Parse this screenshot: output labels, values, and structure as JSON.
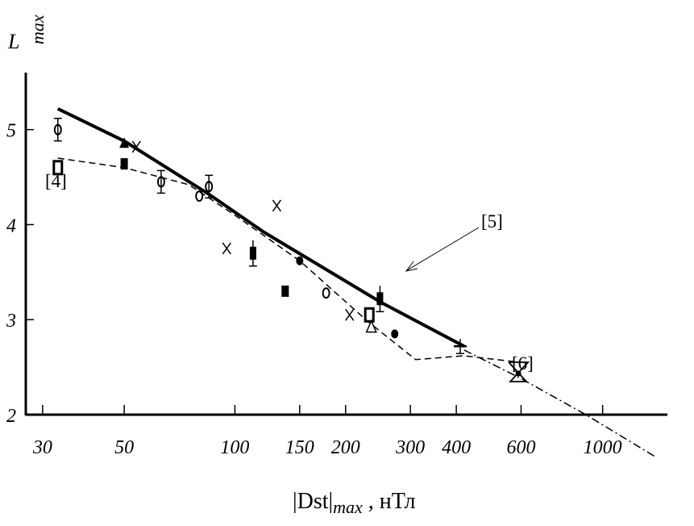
{
  "chart_data": {
    "type": "scatter",
    "xscale": "log",
    "xlim": [
      27,
      1500
    ],
    "ylim": [
      2,
      5.6
    ],
    "x_ticks": [
      30,
      50,
      100,
      150,
      200,
      300,
      400,
      600,
      1000
    ],
    "x_tick_labels": [
      "30",
      "50",
      "100",
      "150",
      "200",
      "300",
      "400",
      "600",
      "1000"
    ],
    "y_ticks": [
      2,
      3,
      4,
      5
    ],
    "y_tick_labels": [
      "2",
      "3",
      "4",
      "5"
    ],
    "ylabel_main": "L",
    "ylabel_sub": "max",
    "xlabel_pre": "|Dst|",
    "xlabel_sub": "max",
    "xlabel_post": " , нТл",
    "series": [
      {
        "name": "[5]",
        "style": "solid-thick",
        "x": [
          33,
          50,
          85,
          120,
          250,
          420
        ],
        "y": [
          5.22,
          4.88,
          4.32,
          3.92,
          3.18,
          2.72
        ]
      },
      {
        "name": "dashed",
        "style": "dashed",
        "x": [
          33,
          50,
          75,
          100,
          150,
          230,
          310,
          420,
          600
        ],
        "y": [
          4.7,
          4.6,
          4.42,
          4.1,
          3.62,
          2.98,
          2.58,
          2.62,
          2.55
        ]
      },
      {
        "name": "[6]",
        "style": "dash-dot",
        "x": [
          420,
          600,
          900,
          1400
        ],
        "y": [
          2.68,
          2.38,
          2.0,
          1.55
        ]
      }
    ],
    "points": [
      {
        "x": 33,
        "y": 5.0,
        "marker": "circle-bar"
      },
      {
        "x": 33,
        "y": 4.6,
        "marker": "open-square"
      },
      {
        "x": 50,
        "y": 4.85,
        "marker": "triangle"
      },
      {
        "x": 50,
        "y": 4.64,
        "marker": "filled-square"
      },
      {
        "x": 54,
        "y": 4.82,
        "marker": "x"
      },
      {
        "x": 63,
        "y": 4.45,
        "marker": "circle-bar"
      },
      {
        "x": 80,
        "y": 4.3,
        "marker": "circle"
      },
      {
        "x": 85,
        "y": 4.4,
        "marker": "circle-bar"
      },
      {
        "x": 95,
        "y": 3.75,
        "marker": "x"
      },
      {
        "x": 112,
        "y": 3.7,
        "marker": "filled-square-bar"
      },
      {
        "x": 130,
        "y": 4.2,
        "marker": "x"
      },
      {
        "x": 137,
        "y": 3.3,
        "marker": "filled-square"
      },
      {
        "x": 150,
        "y": 3.62,
        "marker": "circle-filled"
      },
      {
        "x": 177,
        "y": 3.28,
        "marker": "circle"
      },
      {
        "x": 205,
        "y": 3.05,
        "marker": "x"
      },
      {
        "x": 232,
        "y": 3.05,
        "marker": "open-square"
      },
      {
        "x": 235,
        "y": 2.92,
        "marker": "triangle-open"
      },
      {
        "x": 248,
        "y": 3.22,
        "marker": "filled-square-bar"
      },
      {
        "x": 272,
        "y": 2.85,
        "marker": "circle-filled"
      },
      {
        "x": 410,
        "y": 2.72,
        "marker": "bar"
      },
      {
        "x": 590,
        "y": 2.45,
        "marker": "hourglass"
      }
    ],
    "annotations": [
      {
        "text": "[4]",
        "target": "open-square at 33"
      },
      {
        "text": "[5]",
        "target": "solid line"
      },
      {
        "text": "[6]",
        "target": "hourglass at 600"
      }
    ]
  }
}
